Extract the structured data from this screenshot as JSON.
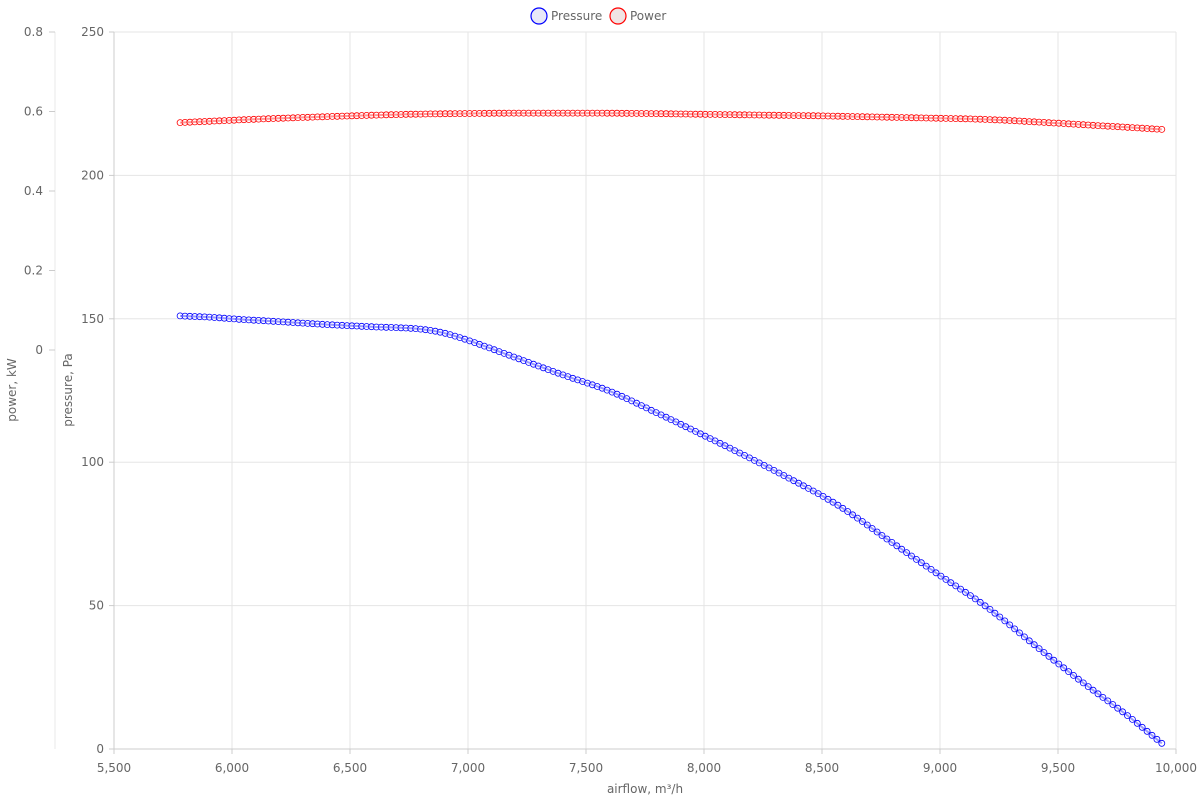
{
  "chart_data": {
    "type": "line",
    "xlabel": "airflow, m³/h",
    "y_left_outer_label": "power, kW",
    "y_left_inner_label": "pressure, Pa",
    "x_ticks": [
      "5,500",
      "6,000",
      "6,500",
      "7,000",
      "7,500",
      "8,000",
      "8,500",
      "9,000",
      "9,500",
      "10,000"
    ],
    "x_tick_values": [
      5500,
      6000,
      6500,
      7000,
      7500,
      8000,
      8500,
      9000,
      9500,
      10000
    ],
    "xlim": [
      5500,
      10000
    ],
    "pressure_ticks": [
      "0",
      "50",
      "100",
      "150",
      "200",
      "250"
    ],
    "pressure_tick_values": [
      0,
      50,
      100,
      150,
      200,
      250
    ],
    "pressure_lim": [
      0,
      250
    ],
    "power_ticks": [
      "0",
      "0.2",
      "0.4",
      "0.6",
      "0.8"
    ],
    "power_tick_values": [
      0,
      0.2,
      0.4,
      0.6,
      0.8
    ],
    "power_lim": [
      -1,
      0.8
    ],
    "grid": true,
    "legend_position": "top-center",
    "series": [
      {
        "name": "Pressure",
        "axis": "pressure",
        "color": "#0000ff",
        "x": [
          5780,
          5900,
          6000,
          6200,
          6400,
          6600,
          6800,
          6900,
          7000,
          7200,
          7400,
          7600,
          7800,
          8000,
          8200,
          8400,
          8500,
          8600,
          8800,
          9000,
          9200,
          9400,
          9600,
          9800,
          9940
        ],
        "y": [
          151,
          150.6,
          150,
          149,
          148,
          147.2,
          146.4,
          145,
          142.5,
          136.5,
          130.5,
          124.8,
          117.2,
          109.3,
          101.2,
          92.7,
          88.3,
          83.3,
          71.8,
          60.5,
          49.4,
          36.3,
          23.5,
          11.3,
          2
        ]
      },
      {
        "name": "Power",
        "axis": "power",
        "color": "#ff0000",
        "x": [
          5780,
          6000,
          6250,
          6500,
          6750,
          7000,
          7250,
          7500,
          7750,
          8000,
          8250,
          8500,
          8750,
          9000,
          9200,
          9400,
          9600,
          9800,
          9940
        ],
        "y": [
          0.572,
          0.578,
          0.584,
          0.589,
          0.593,
          0.595,
          0.596,
          0.596,
          0.595,
          0.593,
          0.591,
          0.589,
          0.586,
          0.583,
          0.58,
          0.574,
          0.567,
          0.56,
          0.555
        ]
      }
    ]
  }
}
